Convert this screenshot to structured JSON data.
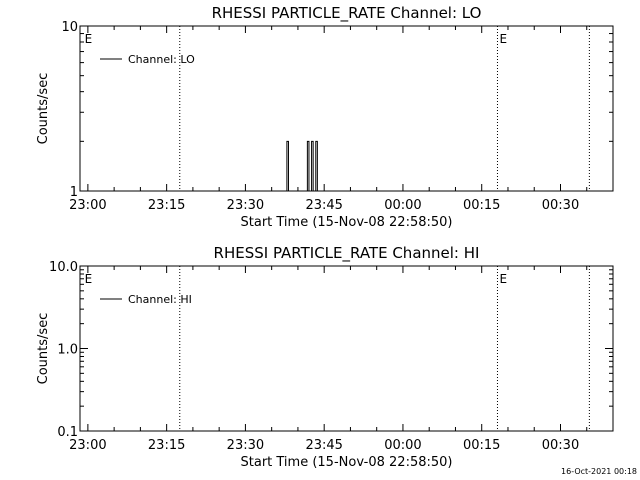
{
  "footer_timestamp": "16-Oct-2021 00:18",
  "chart_data": [
    {
      "type": "line",
      "title": "RHESSI PARTICLE_RATE Channel: LO",
      "xlabel": "Start Time (15-Nov-08 22:58:50)",
      "ylabel": "Counts/sec",
      "y_scale": "log",
      "ylim": [
        1,
        10
      ],
      "y_ticks": [
        {
          "value": 1,
          "label": "1"
        },
        {
          "value": 10,
          "label": "10"
        }
      ],
      "xlim_minutes_from_2300": [
        -1.5,
        100
      ],
      "x_ticks": [
        {
          "value": 0,
          "label": "23:00"
        },
        {
          "value": 15,
          "label": "23:15"
        },
        {
          "value": 30,
          "label": "23:30"
        },
        {
          "value": 45,
          "label": "23:45"
        },
        {
          "value": 60,
          "label": "00:00"
        },
        {
          "value": 75,
          "label": "00:15"
        },
        {
          "value": 90,
          "label": "00:30"
        }
      ],
      "event_lines_minutes_from_2300": [
        17.5,
        78,
        95.5
      ],
      "event_markers": [
        {
          "x": -1,
          "label": "E"
        },
        {
          "x": 78,
          "label": "E"
        }
      ],
      "legend_position": "top-left",
      "series": [
        {
          "name": "Channel: LO",
          "points": [
            [
              37.9,
              1
            ],
            [
              38.0,
              2
            ],
            [
              38.2,
              1
            ],
            [
              41.8,
              1
            ],
            [
              41.9,
              2
            ],
            [
              42.1,
              1
            ],
            [
              42.6,
              1
            ],
            [
              42.7,
              2
            ],
            [
              42.9,
              1
            ],
            [
              43.4,
              1
            ],
            [
              43.5,
              2
            ],
            [
              43.7,
              1
            ]
          ]
        }
      ]
    },
    {
      "type": "line",
      "title": "RHESSI PARTICLE_RATE Channel: HI",
      "xlabel": "Start Time (15-Nov-08 22:58:50)",
      "ylabel": "Counts/sec",
      "y_scale": "log",
      "ylim": [
        0.1,
        10
      ],
      "y_ticks": [
        {
          "value": 0.1,
          "label": "0.1"
        },
        {
          "value": 1,
          "label": "1.0"
        },
        {
          "value": 10,
          "label": "10.0"
        }
      ],
      "xlim_minutes_from_2300": [
        -1.5,
        100
      ],
      "x_ticks": [
        {
          "value": 0,
          "label": "23:00"
        },
        {
          "value": 15,
          "label": "23:15"
        },
        {
          "value": 30,
          "label": "23:30"
        },
        {
          "value": 45,
          "label": "23:45"
        },
        {
          "value": 60,
          "label": "00:00"
        },
        {
          "value": 75,
          "label": "00:15"
        },
        {
          "value": 90,
          "label": "00:30"
        }
      ],
      "event_lines_minutes_from_2300": [
        17.5,
        78,
        95.5
      ],
      "event_markers": [
        {
          "x": -1,
          "label": "E"
        },
        {
          "x": 78,
          "label": "E"
        }
      ],
      "legend_position": "top-left",
      "series": [
        {
          "name": "Channel: HI",
          "points": []
        }
      ]
    }
  ]
}
